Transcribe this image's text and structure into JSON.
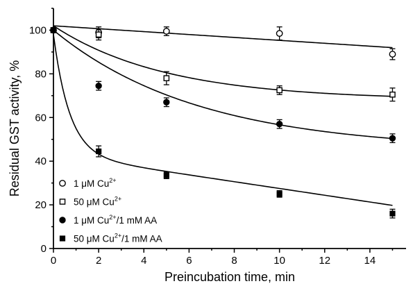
{
  "chart_data": {
    "type": "scatter",
    "title": "",
    "xlabel": "Preincubation time, min",
    "ylabel": "Residual GST activity, %",
    "xlim": [
      0,
      15.6
    ],
    "ylim": [
      0,
      110
    ],
    "xticks": [
      "0",
      "2",
      "4",
      "6",
      "8",
      "10",
      "12",
      "14"
    ],
    "yticks": [
      "0",
      "20",
      "40",
      "60",
      "80",
      "100"
    ],
    "legend_position": "lower-left",
    "series": [
      {
        "name": "1 μM Cu²⁺",
        "label_base": "1 μM Cu",
        "label_sup": "2+",
        "label_tail": "",
        "marker": "open-circle",
        "x": [
          0,
          2,
          5,
          10,
          15
        ],
        "y": [
          100,
          99,
          99.5,
          98.5,
          89
        ],
        "err": [
          1.5,
          2.5,
          2,
          3,
          2.5
        ],
        "fit": {
          "start": 102,
          "end": 92
        }
      },
      {
        "name": "50 μM Cu²⁺",
        "label_base": "50 μM Cu",
        "label_sup": "2+",
        "label_tail": "",
        "marker": "open-square",
        "x": [
          0,
          2,
          5,
          10,
          15
        ],
        "y": [
          100,
          98,
          78,
          72.5,
          70.5
        ],
        "err": [
          1.5,
          2.5,
          3,
          2,
          3
        ],
        "fit": {
          "start": 102,
          "plateau": 68,
          "k": 0.2
        }
      },
      {
        "name": "1 μM Cu²⁺/1 mM AA",
        "label_base": "1 μM Cu",
        "label_sup": "2+",
        "label_tail": "/1 mM AA",
        "marker": "filled-circle",
        "x": [
          0,
          2,
          5,
          10,
          15
        ],
        "y": [
          100,
          74.5,
          67,
          57,
          50.5
        ],
        "err": [
          1.5,
          2,
          2,
          2,
          2
        ],
        "fit": {
          "start": 100,
          "plateau": 45,
          "k": 0.155
        }
      },
      {
        "name": "50 μM Cu²⁺/1 mM AA",
        "label_base": "50 μM Cu",
        "label_sup": "2+",
        "label_tail": "/1 mM AA",
        "marker": "filled-square",
        "x": [
          0,
          2,
          5,
          10,
          15
        ],
        "y": [
          100,
          44.5,
          33.5,
          25,
          16
        ],
        "err": [
          1.5,
          2.5,
          1.5,
          1.5,
          2
        ],
        "fit": {
          "start": 98,
          "fast_amp": 55,
          "fast_k": 1.4,
          "base": 43,
          "slow_slope": -1.55
        }
      }
    ]
  }
}
